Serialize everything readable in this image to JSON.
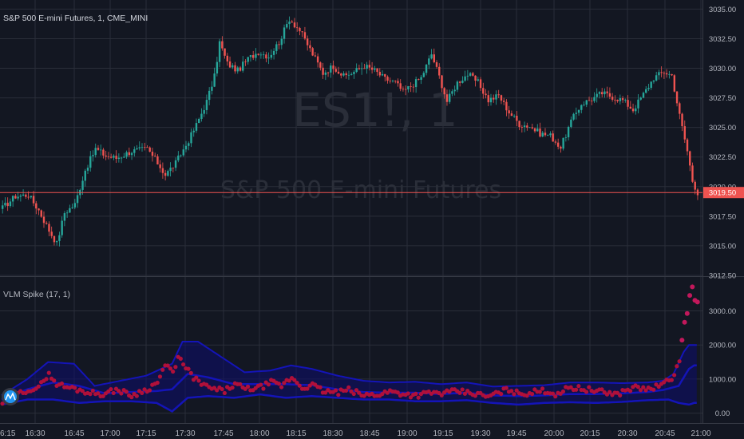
{
  "colors": {
    "background": "#131722",
    "grid": "#2a2e39",
    "axis_text": "#b2b5be",
    "up": "#26a69a",
    "down": "#ef5350",
    "price_line": "#ef5350",
    "volume_dots": "#b0103a",
    "band": "#1414b8",
    "band_fill": "#0d0d6e",
    "watermark": "#2a2e39"
  },
  "header": {
    "title": "S&P 500 E-mini Futures, 1, CME_MINI",
    "watermark_symbol": "ES1!, 1",
    "watermark_name": "S&P 500 E-mini Futures"
  },
  "indicator": {
    "title": "VLM Spike (17, 1)",
    "logo_icon": "tradingview-logo-icon"
  },
  "chart_data": [
    {
      "type": "candlestick",
      "title": "S&P 500 E-mini Futures, 1, CME_MINI",
      "x_ticks": [
        "6:15",
        "16:30",
        "16:45",
        "17:00",
        "17:15",
        "17:30",
        "17:45",
        "18:00",
        "18:15",
        "18:30",
        "18:45",
        "19:00",
        "19:15",
        "19:30",
        "19:45",
        "20:00",
        "20:15",
        "20:30",
        "20:45",
        "21:00"
      ],
      "y_ticks": [
        "3035.00",
        "3032.50",
        "3030.00",
        "3027.50",
        "3025.00",
        "3022.50",
        "3020.00",
        "3017.50",
        "3015.00",
        "3012.50"
      ],
      "ylim": [
        3012.5,
        3035.5
      ],
      "last_price": 3019.5,
      "last_price_label": "3019.50",
      "close_path": [
        [
          0,
          3018.2
        ],
        [
          5,
          3019.2
        ],
        [
          10,
          3019.3
        ],
        [
          14,
          3018.0
        ],
        [
          18,
          3016.3
        ],
        [
          21,
          3015.2
        ],
        [
          24,
          3017.8
        ],
        [
          28,
          3018.5
        ],
        [
          32,
          3021.4
        ],
        [
          36,
          3023.2
        ],
        [
          40,
          3022.6
        ],
        [
          44,
          3022.4
        ],
        [
          50,
          3023.0
        ],
        [
          56,
          3023.2
        ],
        [
          60,
          3022.0
        ],
        [
          63,
          3021.0
        ],
        [
          67,
          3022.0
        ],
        [
          71,
          3023.5
        ],
        [
          75,
          3025.2
        ],
        [
          79,
          3027.2
        ],
        [
          82,
          3029.3
        ],
        [
          84,
          3032.2
        ],
        [
          87,
          3030.4
        ],
        [
          91,
          3029.8
        ],
        [
          95,
          3030.8
        ],
        [
          99,
          3031.4
        ],
        [
          103,
          3031.0
        ],
        [
          107,
          3032.2
        ],
        [
          111,
          3034.2
        ],
        [
          115,
          3033.2
        ],
        [
          119,
          3031.6
        ],
        [
          124,
          3029.6
        ],
        [
          128,
          3030.2
        ],
        [
          132,
          3029.3
        ],
        [
          136,
          3029.7
        ],
        [
          140,
          3030.2
        ],
        [
          144,
          3029.8
        ],
        [
          148,
          3029.1
        ],
        [
          152,
          3028.8
        ],
        [
          155,
          3028.0
        ],
        [
          158,
          3028.5
        ],
        [
          162,
          3029.2
        ],
        [
          166,
          3031.2
        ],
        [
          169,
          3029.3
        ],
        [
          172,
          3027.2
        ],
        [
          176,
          3028.8
        ],
        [
          180,
          3029.5
        ],
        [
          184,
          3028.8
        ],
        [
          188,
          3027.3
        ],
        [
          192,
          3027.7
        ],
        [
          196,
          3026.3
        ],
        [
          200,
          3025.3
        ],
        [
          204,
          3025.1
        ],
        [
          208,
          3024.5
        ],
        [
          212,
          3024.3
        ],
        [
          216,
          3023.3
        ],
        [
          220,
          3025.5
        ],
        [
          224,
          3027.0
        ],
        [
          228,
          3027.4
        ],
        [
          232,
          3027.9
        ],
        [
          236,
          3027.6
        ],
        [
          240,
          3027.3
        ],
        [
          244,
          3026.5
        ],
        [
          248,
          3027.8
        ],
        [
          252,
          3029.2
        ],
        [
          256,
          3029.7
        ],
        [
          259,
          3029.4
        ],
        [
          262,
          3026.0
        ],
        [
          265,
          3023.0
        ],
        [
          267,
          3020.5
        ],
        [
          269,
          3019.5
        ]
      ]
    },
    {
      "type": "line",
      "title": "VLM Spike (17, 1)",
      "x_ticks": [
        "6:15",
        "16:30",
        "16:45",
        "17:00",
        "17:15",
        "17:30",
        "17:45",
        "18:00",
        "18:15",
        "18:30",
        "18:45",
        "19:00",
        "19:15",
        "19:30",
        "19:45",
        "20:00",
        "20:15",
        "20:30",
        "20:45",
        "21:00"
      ],
      "y_ticks": [
        "3000.00",
        "2000.00",
        "1000.00",
        "0.00"
      ],
      "ylim": [
        -150,
        3950
      ],
      "series": [
        {
          "role": "volume",
          "points": [
            [
              0,
              300
            ],
            [
              5,
              520
            ],
            [
              10,
              700
            ],
            [
              14,
              720
            ],
            [
              18,
              1200
            ],
            [
              20,
              900
            ],
            [
              24,
              780
            ],
            [
              28,
              720
            ],
            [
              34,
              600
            ],
            [
              40,
              560
            ],
            [
              44,
              700
            ],
            [
              50,
              520
            ],
            [
              56,
              700
            ],
            [
              60,
              900
            ],
            [
              62,
              1250
            ],
            [
              64,
              1400
            ],
            [
              66,
              1150
            ],
            [
              68,
              1700
            ],
            [
              70,
              1400
            ],
            [
              74,
              1050
            ],
            [
              78,
              800
            ],
            [
              82,
              700
            ],
            [
              86,
              650
            ],
            [
              90,
              850
            ],
            [
              94,
              700
            ],
            [
              100,
              760
            ],
            [
              104,
              900
            ],
            [
              108,
              800
            ],
            [
              112,
              1050
            ],
            [
              116,
              750
            ],
            [
              120,
              820
            ],
            [
              124,
              650
            ],
            [
              130,
              600
            ],
            [
              134,
              680
            ],
            [
              140,
              520
            ],
            [
              146,
              560
            ],
            [
              150,
              640
            ],
            [
              156,
              560
            ],
            [
              160,
              520
            ],
            [
              166,
              600
            ],
            [
              170,
              580
            ],
            [
              176,
              640
            ],
            [
              182,
              580
            ],
            [
              188,
              480
            ],
            [
              192,
              600
            ],
            [
              196,
              700
            ],
            [
              200,
              560
            ],
            [
              204,
              600
            ],
            [
              210,
              660
            ],
            [
              214,
              560
            ],
            [
              220,
              760
            ],
            [
              226,
              700
            ],
            [
              232,
              620
            ],
            [
              238,
              560
            ],
            [
              244,
              760
            ],
            [
              250,
              700
            ],
            [
              256,
              850
            ],
            [
              260,
              1100
            ],
            [
              262,
              1600
            ],
            [
              264,
              2600
            ],
            [
              266,
              3400
            ],
            [
              267,
              3700
            ],
            [
              268,
              3300
            ]
          ]
        },
        {
          "role": "upper-band",
          "points": [
            [
              0,
              520
            ],
            [
              10,
              1000
            ],
            [
              18,
              1500
            ],
            [
              28,
              1450
            ],
            [
              36,
              800
            ],
            [
              46,
              950
            ],
            [
              56,
              1100
            ],
            [
              66,
              1450
            ],
            [
              70,
              2100
            ],
            [
              76,
              2100
            ],
            [
              84,
              1700
            ],
            [
              94,
              1200
            ],
            [
              104,
              1250
            ],
            [
              112,
              1400
            ],
            [
              120,
              1300
            ],
            [
              130,
              1100
            ],
            [
              140,
              950
            ],
            [
              150,
              900
            ],
            [
              160,
              920
            ],
            [
              170,
              850
            ],
            [
              180,
              900
            ],
            [
              190,
              780
            ],
            [
              200,
              800
            ],
            [
              210,
              820
            ],
            [
              220,
              900
            ],
            [
              230,
              900
            ],
            [
              240,
              880
            ],
            [
              250,
              900
            ],
            [
              256,
              950
            ],
            [
              260,
              1150
            ],
            [
              264,
              1800
            ],
            [
              266,
              2000
            ],
            [
              268,
              2000
            ]
          ]
        },
        {
          "role": "lower-band",
          "points": [
            [
              0,
              250
            ],
            [
              10,
              400
            ],
            [
              20,
              400
            ],
            [
              30,
              300
            ],
            [
              40,
              350
            ],
            [
              50,
              350
            ],
            [
              60,
              300
            ],
            [
              66,
              50
            ],
            [
              72,
              450
            ],
            [
              80,
              500
            ],
            [
              90,
              450
            ],
            [
              100,
              550
            ],
            [
              110,
              450
            ],
            [
              120,
              500
            ],
            [
              130,
              450
            ],
            [
              140,
              400
            ],
            [
              150,
              400
            ],
            [
              160,
              350
            ],
            [
              170,
              350
            ],
            [
              180,
              380
            ],
            [
              190,
              300
            ],
            [
              200,
              250
            ],
            [
              210,
              300
            ],
            [
              220,
              320
            ],
            [
              230,
              300
            ],
            [
              240,
              330
            ],
            [
              250,
              380
            ],
            [
              258,
              400
            ],
            [
              262,
              300
            ],
            [
              266,
              250
            ],
            [
              268,
              300
            ]
          ]
        },
        {
          "role": "mid-band",
          "points": [
            [
              0,
              400
            ],
            [
              10,
              700
            ],
            [
              20,
              900
            ],
            [
              30,
              800
            ],
            [
              40,
              580
            ],
            [
              50,
              620
            ],
            [
              60,
              650
            ],
            [
              66,
              700
            ],
            [
              72,
              1150
            ],
            [
              80,
              1050
            ],
            [
              90,
              850
            ],
            [
              100,
              850
            ],
            [
              110,
              850
            ],
            [
              120,
              820
            ],
            [
              130,
              700
            ],
            [
              140,
              620
            ],
            [
              150,
              600
            ],
            [
              160,
              600
            ],
            [
              170,
              560
            ],
            [
              180,
              600
            ],
            [
              190,
              520
            ],
            [
              200,
              500
            ],
            [
              210,
              520
            ],
            [
              220,
              560
            ],
            [
              230,
              560
            ],
            [
              240,
              580
            ],
            [
              250,
              620
            ],
            [
              256,
              680
            ],
            [
              262,
              800
            ],
            [
              266,
              1300
            ],
            [
              268,
              1400
            ]
          ]
        }
      ]
    }
  ]
}
